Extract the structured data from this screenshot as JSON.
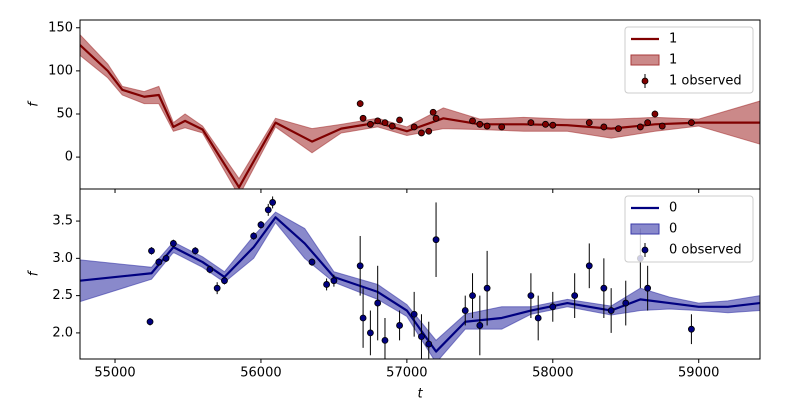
{
  "chart_data": [
    {
      "type": "line",
      "ylabel": "f",
      "legend": "upper right",
      "show_xticklabels": false,
      "xlim": [
        54760,
        59420
      ],
      "ylim": [
        -37,
        159
      ],
      "xticks": [
        55000,
        56000,
        57000,
        58000,
        59000
      ],
      "yticks": [
        0,
        50,
        100,
        150
      ],
      "series": [
        {
          "name": "1",
          "kind": "line",
          "color": "#800000",
          "x": [
            54760,
            54950,
            55050,
            55200,
            55300,
            55400,
            55480,
            55600,
            55850,
            56100,
            56350,
            56550,
            56800,
            57000,
            57250,
            57500,
            57800,
            58100,
            58400,
            58700,
            59000,
            59420
          ],
          "values": [
            130,
            100,
            78,
            70,
            72,
            35,
            42,
            32,
            -35,
            40,
            18,
            33,
            40,
            30,
            45,
            38,
            38,
            37,
            33,
            38,
            40,
            40
          ]
        },
        {
          "name": "1",
          "kind": "band",
          "color": "#a83a3a",
          "x": [
            54760,
            54950,
            55050,
            55200,
            55300,
            55400,
            55480,
            55600,
            55850,
            56100,
            56350,
            56550,
            56800,
            57000,
            57250,
            57500,
            57800,
            58100,
            58400,
            58700,
            59000,
            59420
          ],
          "lower": [
            118,
            92,
            72,
            62,
            62,
            30,
            34,
            28,
            -45,
            35,
            5,
            28,
            35,
            25,
            33,
            32,
            30,
            30,
            22,
            30,
            36,
            15
          ],
          "upper": [
            142,
            108,
            82,
            76,
            82,
            40,
            50,
            36,
            -25,
            45,
            33,
            38,
            45,
            35,
            57,
            44,
            46,
            44,
            44,
            46,
            44,
            65
          ]
        },
        {
          "name": "1 observed",
          "kind": "errorbar",
          "color": "#800000",
          "x": [
            56680,
            56700,
            56750,
            56800,
            56850,
            56900,
            56950,
            57050,
            57100,
            57150,
            57180,
            57200,
            57450,
            57500,
            57550,
            57650,
            57850,
            57950,
            58000,
            58250,
            58350,
            58450,
            58600,
            58650,
            58700,
            58750,
            58950
          ],
          "values": [
            62,
            45,
            38,
            42,
            40,
            36,
            43,
            35,
            28,
            30,
            52,
            45,
            42,
            38,
            36,
            35,
            40,
            38,
            37,
            40,
            35,
            33,
            35,
            40,
            50,
            36,
            40
          ],
          "errors": [
            4,
            3,
            3,
            3,
            3,
            3,
            3,
            3,
            3,
            3,
            3,
            3,
            3,
            3,
            3,
            3,
            3,
            3,
            3,
            3,
            3,
            3,
            3,
            3,
            4,
            3,
            3
          ]
        }
      ]
    },
    {
      "type": "line",
      "ylabel": "f",
      "xlabel": "t",
      "legend": "upper right",
      "show_xticklabels": true,
      "xlim": [
        54760,
        59420
      ],
      "ylim": [
        1.65,
        3.93
      ],
      "xticks": [
        55000,
        56000,
        57000,
        58000,
        59000
      ],
      "yticks": [
        {
          "value": 2,
          "label": "2.0"
        },
        2.5,
        {
          "value": 3,
          "label": "3.0"
        },
        3.5
      ],
      "series": [
        {
          "name": "0",
          "kind": "line",
          "color": "#000080",
          "x": [
            54760,
            55250,
            55400,
            55600,
            55750,
            55950,
            56100,
            56300,
            56500,
            56800,
            57000,
            57200,
            57400,
            57650,
            57850,
            58100,
            58400,
            58600,
            58800,
            59000,
            59200,
            59420
          ],
          "values": [
            2.7,
            2.8,
            3.15,
            2.95,
            2.75,
            3.15,
            3.55,
            3.2,
            2.75,
            2.55,
            2.3,
            1.75,
            2.15,
            2.2,
            2.3,
            2.4,
            2.3,
            2.45,
            2.4,
            2.35,
            2.35,
            2.4
          ]
        },
        {
          "name": "0",
          "kind": "band",
          "color": "#3a3aa8",
          "x": [
            54760,
            55250,
            55400,
            55600,
            55750,
            55950,
            56100,
            56300,
            56500,
            56800,
            57000,
            57200,
            57400,
            57650,
            57850,
            58100,
            58400,
            58600,
            58800,
            59000,
            59200,
            59420
          ],
          "lower": [
            2.42,
            2.72,
            3.08,
            2.88,
            2.68,
            3.0,
            3.48,
            3.0,
            2.68,
            2.45,
            2.22,
            1.6,
            2.05,
            2.05,
            2.25,
            2.35,
            2.24,
            2.3,
            2.32,
            2.3,
            2.27,
            2.3
          ],
          "upper": [
            2.98,
            2.88,
            3.22,
            3.02,
            2.82,
            3.3,
            3.62,
            3.4,
            2.82,
            2.65,
            2.38,
            1.9,
            2.25,
            2.35,
            2.35,
            2.45,
            2.36,
            2.6,
            2.48,
            2.4,
            2.43,
            2.5
          ]
        },
        {
          "name": "0 observed",
          "kind": "errorbar",
          "color": "#000080",
          "x": [
            55240,
            55250,
            55300,
            55350,
            55400,
            55550,
            55650,
            55700,
            55750,
            55950,
            56000,
            56050,
            56080,
            56350,
            56450,
            56500,
            56680,
            56700,
            56750,
            56800,
            56850,
            56950,
            57050,
            57100,
            57150,
            57200,
            57400,
            57450,
            57500,
            57550,
            57850,
            57900,
            58000,
            58150,
            58250,
            58350,
            58400,
            58500,
            58600,
            58650,
            58950
          ],
          "values": [
            2.15,
            3.1,
            2.95,
            3.0,
            3.2,
            3.1,
            2.85,
            2.6,
            2.7,
            3.3,
            3.45,
            3.65,
            3.75,
            2.95,
            2.65,
            2.7,
            2.9,
            2.2,
            2.0,
            2.4,
            1.9,
            2.1,
            2.25,
            1.95,
            1.85,
            3.25,
            2.3,
            2.5,
            2.1,
            2.6,
            2.5,
            2.2,
            2.35,
            2.5,
            2.9,
            2.6,
            2.3,
            2.4,
            3.0,
            2.6,
            2.05
          ],
          "errors": [
            0.05,
            0.05,
            0.05,
            0.05,
            0.05,
            0.05,
            0.05,
            0.08,
            0.05,
            0.05,
            0.05,
            0.08,
            0.08,
            0.05,
            0.08,
            0.08,
            0.4,
            0.4,
            0.3,
            0.5,
            0.3,
            0.2,
            0.3,
            0.3,
            0.3,
            0.5,
            0.2,
            0.3,
            0.4,
            0.5,
            0.3,
            0.3,
            0.2,
            0.3,
            0.3,
            0.4,
            0.3,
            0.3,
            0.4,
            0.3,
            0.2
          ]
        }
      ]
    }
  ]
}
